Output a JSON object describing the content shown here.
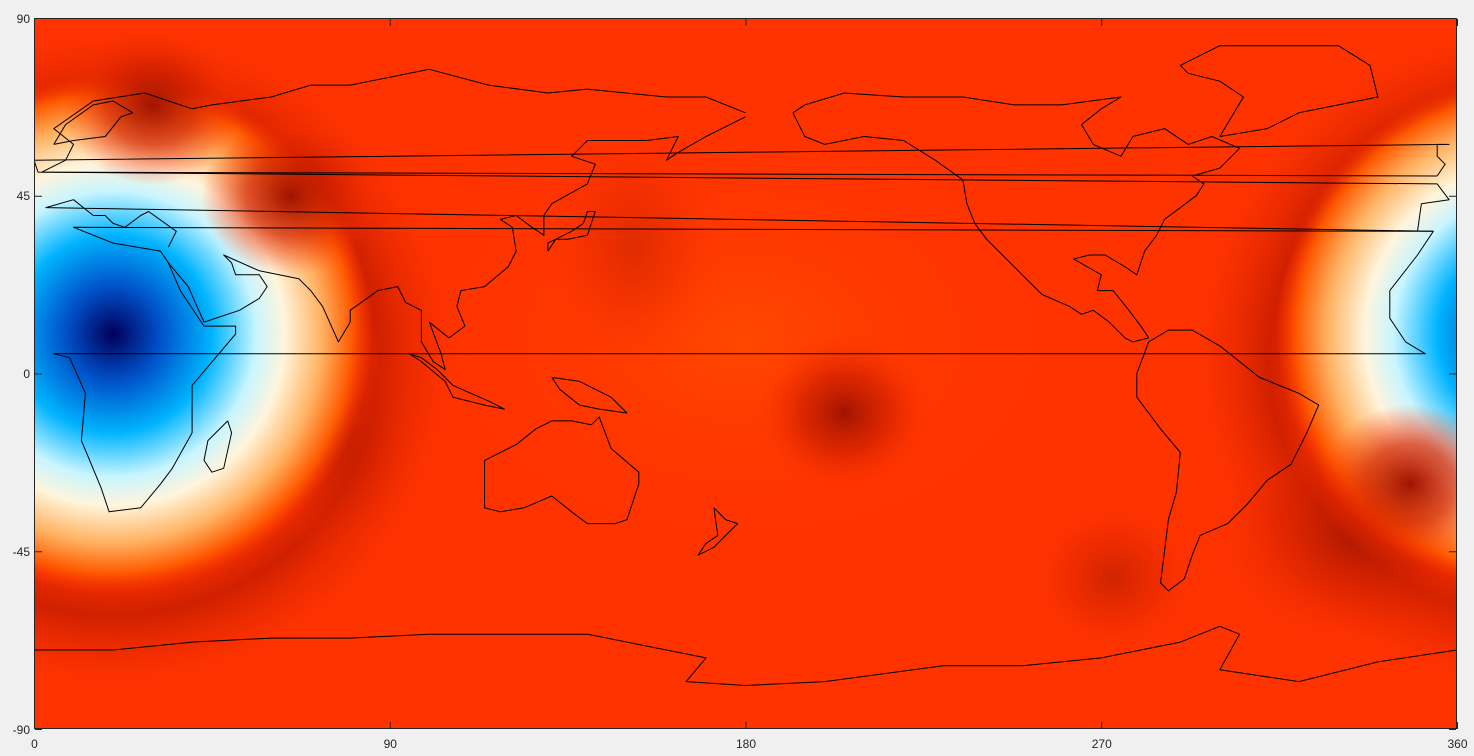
{
  "figure": {
    "colors": {
      "background": "#f0f0f0",
      "field_base": "#ff3300",
      "coastline": "#000000",
      "axis": "#262626",
      "colormap": [
        "#00005a",
        "#0050c8",
        "#00b4ff",
        "#c8f5ff",
        "#fff5dc",
        "#ffb464",
        "#ff5a00",
        "#ff3c00",
        "#e62800",
        "#a01400"
      ]
    },
    "x_ticks": [
      "0",
      "90",
      "180",
      "270",
      "360"
    ],
    "y_ticks": [
      "90",
      "45",
      "0",
      "-45",
      "-90"
    ],
    "x_range": [
      0,
      360
    ],
    "y_range": [
      -90,
      90
    ],
    "field_features": [
      {
        "kind": "minimum",
        "lon": 20,
        "lat": 10,
        "color": "#00005a"
      },
      {
        "kind": "minimum-wrap",
        "lon": 380,
        "lat": 10,
        "color": "#00005a"
      },
      {
        "kind": "high-dark",
        "lon": 205,
        "lat": -10,
        "color": "#a01400"
      },
      {
        "kind": "high-dark",
        "lon": 348,
        "lat": -28,
        "color": "#a01400"
      },
      {
        "kind": "high-dark",
        "lon": 65,
        "lat": 45,
        "color": "#a01400"
      },
      {
        "kind": "high-dark",
        "lon": 30,
        "lat": 68,
        "color": "#a01400"
      }
    ]
  }
}
